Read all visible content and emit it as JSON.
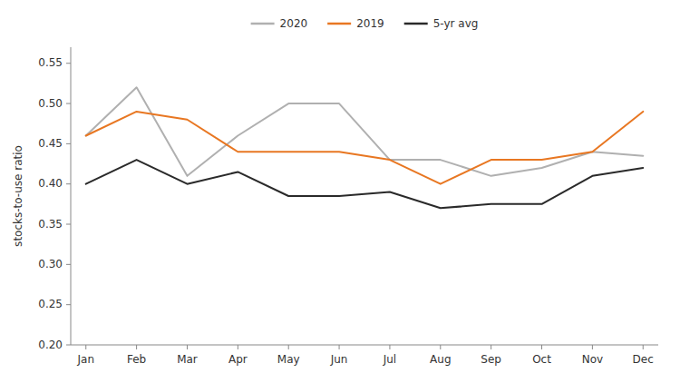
{
  "chart_data": {
    "type": "line",
    "ylabel": "stocks-to-use ratio",
    "categories": [
      "Jan",
      "Feb",
      "Mar",
      "Apr",
      "May",
      "Jun",
      "Jul",
      "Aug",
      "Sep",
      "Oct",
      "Nov",
      "Dec"
    ],
    "series": [
      {
        "name": "2020",
        "color": "#b0b0b0",
        "values": [
          0.46,
          0.52,
          0.41,
          0.46,
          0.5,
          0.5,
          0.43,
          0.43,
          0.41,
          0.42,
          0.44,
          0.435
        ]
      },
      {
        "name": "2019",
        "color": "#e87722",
        "values": [
          0.46,
          0.49,
          0.48,
          0.44,
          0.44,
          0.44,
          0.43,
          0.4,
          0.43,
          0.43,
          0.44,
          0.49
        ]
      },
      {
        "name": "5-yr avg",
        "color": "#2a2a2a",
        "values": [
          0.4,
          0.43,
          0.4,
          0.415,
          0.385,
          0.385,
          0.39,
          0.37,
          0.375,
          0.375,
          0.41,
          0.42
        ]
      }
    ],
    "ylim": [
      0.2,
      0.57
    ],
    "yticks": [
      {
        "value": 0.2,
        "label": "0.20"
      },
      0.25,
      {
        "value": 0.3,
        "label": "0.30"
      },
      0.35,
      {
        "value": 0.4,
        "label": "0.40"
      },
      0.45,
      {
        "value": 0.5,
        "label": "0.50"
      },
      0.55
    ],
    "grid": false,
    "legend": "top"
  }
}
